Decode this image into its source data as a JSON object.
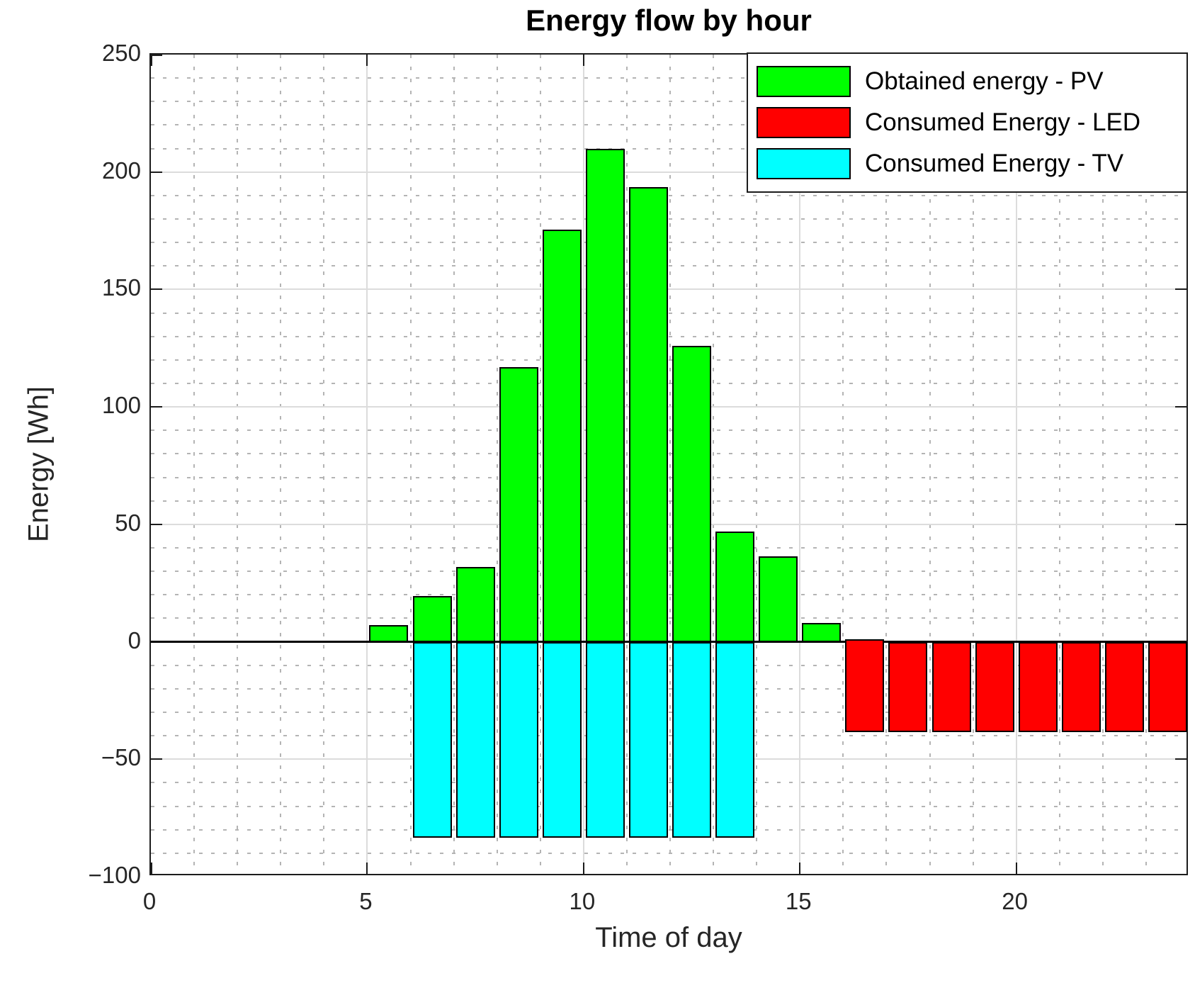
{
  "title": "Energy flow by hour",
  "axis": {
    "xlabel": "Time of day",
    "ylabel": "Energy [Wh]"
  },
  "chart_data": {
    "type": "bar",
    "title": "Energy flow by hour",
    "xlabel": "Time of day",
    "ylabel": "Energy [Wh]",
    "xlim": [
      0,
      24
    ],
    "ylim": [
      -100,
      250
    ],
    "xticks": [
      0,
      5,
      10,
      15,
      20
    ],
    "xtick_labels": [
      "0",
      "5",
      "10",
      "15",
      "20"
    ],
    "yticks": [
      250,
      200,
      150,
      100,
      50,
      0,
      -50,
      -100
    ],
    "ytick_labels": [
      "250",
      "200",
      "150",
      "100",
      "50",
      "0",
      "−50",
      "−100"
    ],
    "grid": true,
    "minor_grid_x_step": 1,
    "minor_grid_y_step": 10,
    "legend_position": "top-right",
    "bar_width": 0.9,
    "baseline": 0,
    "series": [
      {
        "name": "Obtained energy - PV",
        "color": "#00ff00",
        "hours": [
          5.5,
          6.5,
          7.5,
          8.5,
          9.5,
          10.5,
          11.5,
          12.5,
          13.5,
          14.5,
          15.5
        ],
        "values": [
          7,
          19.5,
          32,
          117,
          175.5,
          210,
          193.5,
          126,
          47,
          36.5,
          8
        ]
      },
      {
        "name": "Consumed Energy - LED",
        "color": "#ff0000",
        "hours": [
          16.5,
          17.5,
          18.5,
          19.5,
          20.5,
          21.5,
          22.5,
          23.5
        ],
        "values": [
          -38.5,
          -38.5,
          -38.5,
          -38.5,
          -38.5,
          -38.5,
          -38.5,
          -38.5
        ],
        "first_bar_top_cap": 1
      },
      {
        "name": "Consumed Energy - TV",
        "color": "#00ffff",
        "hours": [
          6.5,
          7.5,
          8.5,
          9.5,
          10.5,
          11.5,
          12.5,
          13.5
        ],
        "values": [
          -83.5,
          -83.5,
          -83.5,
          -83.5,
          -83.5,
          -83.5,
          -83.5,
          -83.5
        ]
      }
    ]
  }
}
